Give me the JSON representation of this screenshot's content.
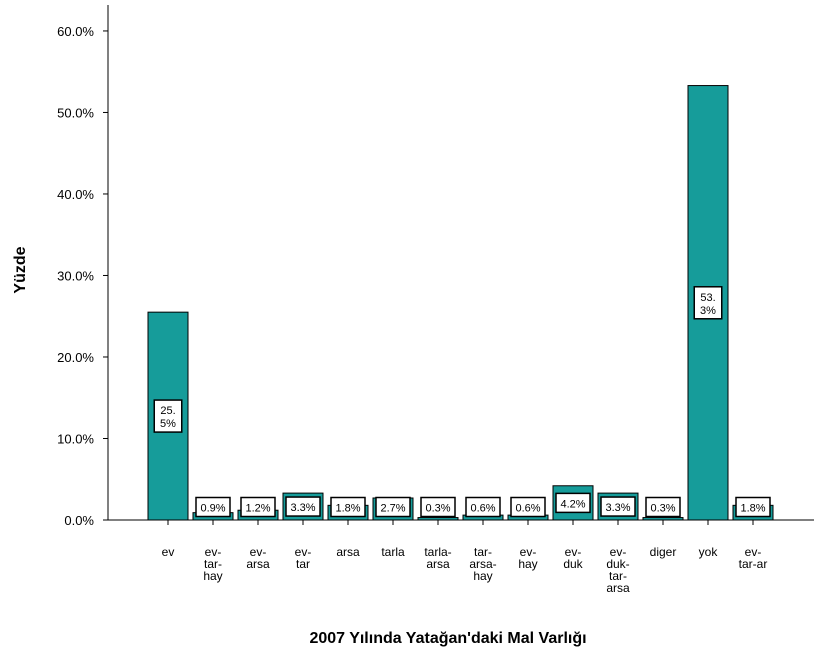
{
  "chart_data": {
    "type": "bar",
    "x_label": "2007 Yılında Yatağan'daki Mal Varlığı",
    "y_label": "Yüzde",
    "categories": [
      "ev",
      "ev-\ntar-\nhay",
      "ev-\narsa",
      "ev-\ntar",
      "arsa",
      "tarla",
      "tarla-\narsa",
      "tar-\narsa-\nhay",
      "ev-\nhay",
      "ev-\nduk",
      "ev-\nduk-\ntar-\narsa",
      "diger",
      "yok",
      "ev-\ntar-ar"
    ],
    "values": [
      25.5,
      0.9,
      1.2,
      3.3,
      1.8,
      2.7,
      0.3,
      0.6,
      0.6,
      4.2,
      3.3,
      0.3,
      53.3,
      1.8
    ],
    "value_labels": [
      "25.\n5%",
      "0.9%",
      "1.2%",
      "3.3%",
      "1.8%",
      "2.7%",
      "0.3%",
      "0.6%",
      "0.6%",
      "4.2%",
      "3.3%",
      "0.3%",
      "53.\n3%",
      "1.8%"
    ],
    "color": "#169c9a",
    "ylim": [
      0,
      63
    ],
    "yticks": [
      {
        "value": 0,
        "label": "0.0%"
      },
      {
        "value": 10,
        "label": "10.0%"
      },
      {
        "value": 20,
        "label": "20.0%"
      },
      {
        "value": 30,
        "label": "30.0%"
      },
      {
        "value": 40,
        "label": "40.0%"
      },
      {
        "value": 50,
        "label": "50.0%"
      },
      {
        "value": 60,
        "label": "60.0%"
      }
    ]
  }
}
